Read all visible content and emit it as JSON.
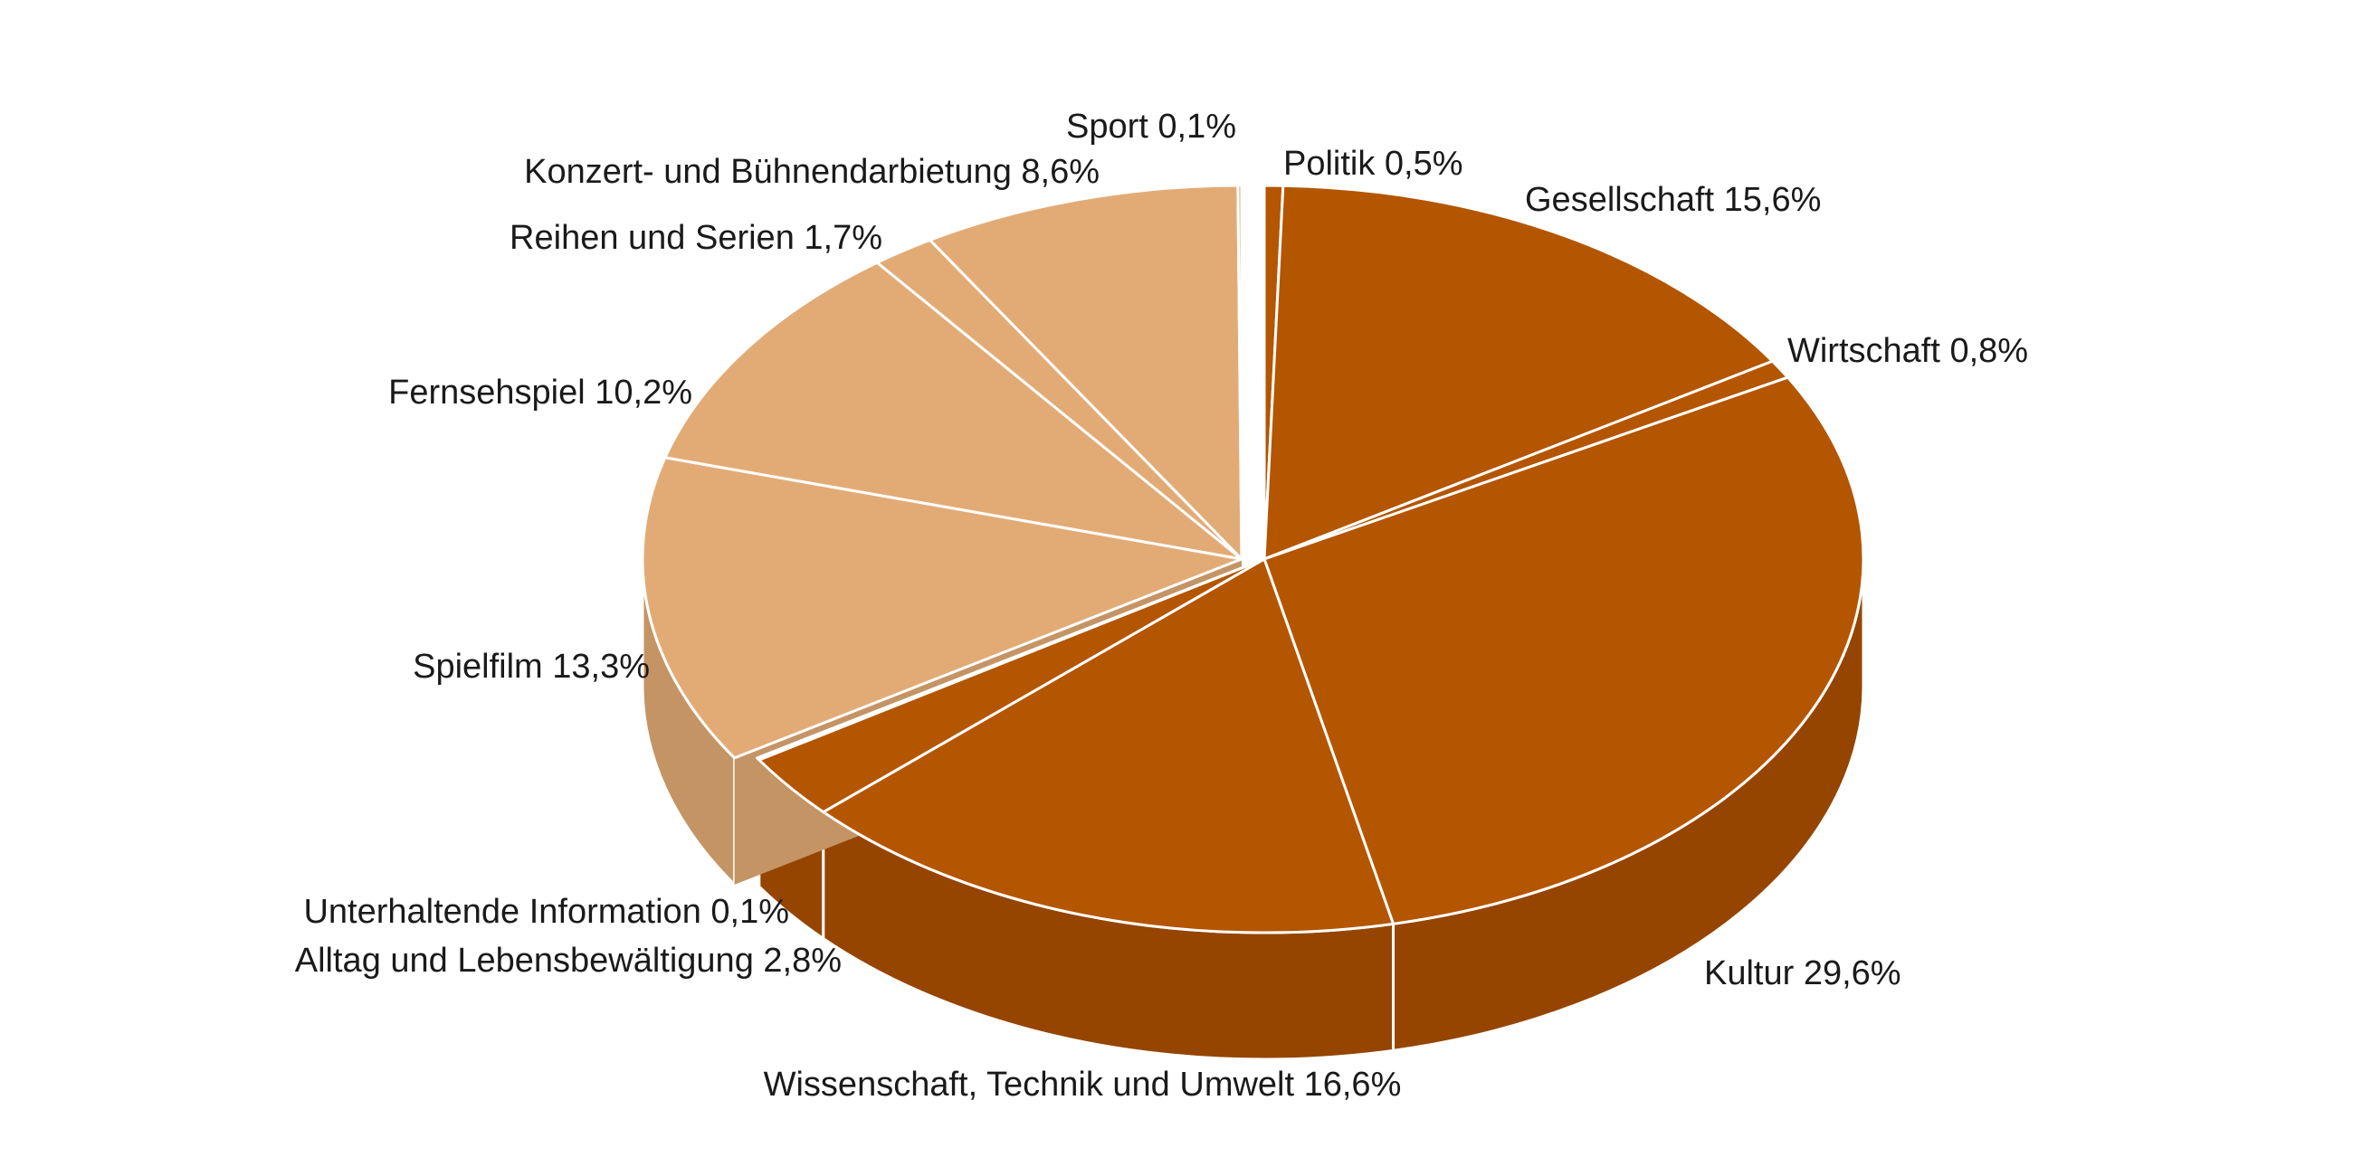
{
  "chart_data": {
    "type": "pie",
    "title": "",
    "start_angle_deg": 90,
    "direction": "clockwise",
    "groups": {
      "information": {
        "top_color": "#b45500",
        "side_color": "#954500"
      },
      "entertainment": {
        "top_color": "#e2ab76",
        "side_color": "#c49465"
      }
    },
    "exploded_group": "entertainment",
    "slices": [
      {
        "name": "Politik",
        "value": 0.5,
        "label": "Politik 0,5%",
        "group": "information"
      },
      {
        "name": "Gesellschaft",
        "value": 15.6,
        "label": "Gesellschaft 15,6%",
        "group": "information"
      },
      {
        "name": "Wirtschaft",
        "value": 0.8,
        "label": "Wirtschaft 0,8%",
        "group": "information"
      },
      {
        "name": "Kultur",
        "value": 29.6,
        "label": "Kultur 29,6%",
        "group": "information"
      },
      {
        "name": "Wissenschaft, Technik und Umwelt",
        "value": 16.6,
        "label": "Wissenschaft, Technik und Umwelt 16,6%",
        "group": "information"
      },
      {
        "name": "Alltag und Lebensbewältigung",
        "value": 2.8,
        "label": "Alltag und Lebensbewältigung 2,8%",
        "group": "information"
      },
      {
        "name": "Unterhaltende Information",
        "value": 0.1,
        "label": "Unterhaltende Information 0,1%",
        "group": "information"
      },
      {
        "name": "Spielfilm",
        "value": 13.3,
        "label": "Spielfilm 13,3%",
        "group": "entertainment"
      },
      {
        "name": "Fernsehspiel",
        "value": 10.2,
        "label": "Fernsehspiel 10,2%",
        "group": "entertainment"
      },
      {
        "name": "Reihen und Serien",
        "value": 1.7,
        "label": "Reihen und Serien 1,7%",
        "group": "entertainment"
      },
      {
        "name": "Konzert- und Bühnendarbietung",
        "value": 8.6,
        "label": "Konzert- und Bühnendarbietung 8,6%",
        "group": "entertainment"
      },
      {
        "name": "Sport",
        "value": 0.1,
        "label": "Sport 0,1%",
        "group": "entertainment"
      }
    ]
  }
}
